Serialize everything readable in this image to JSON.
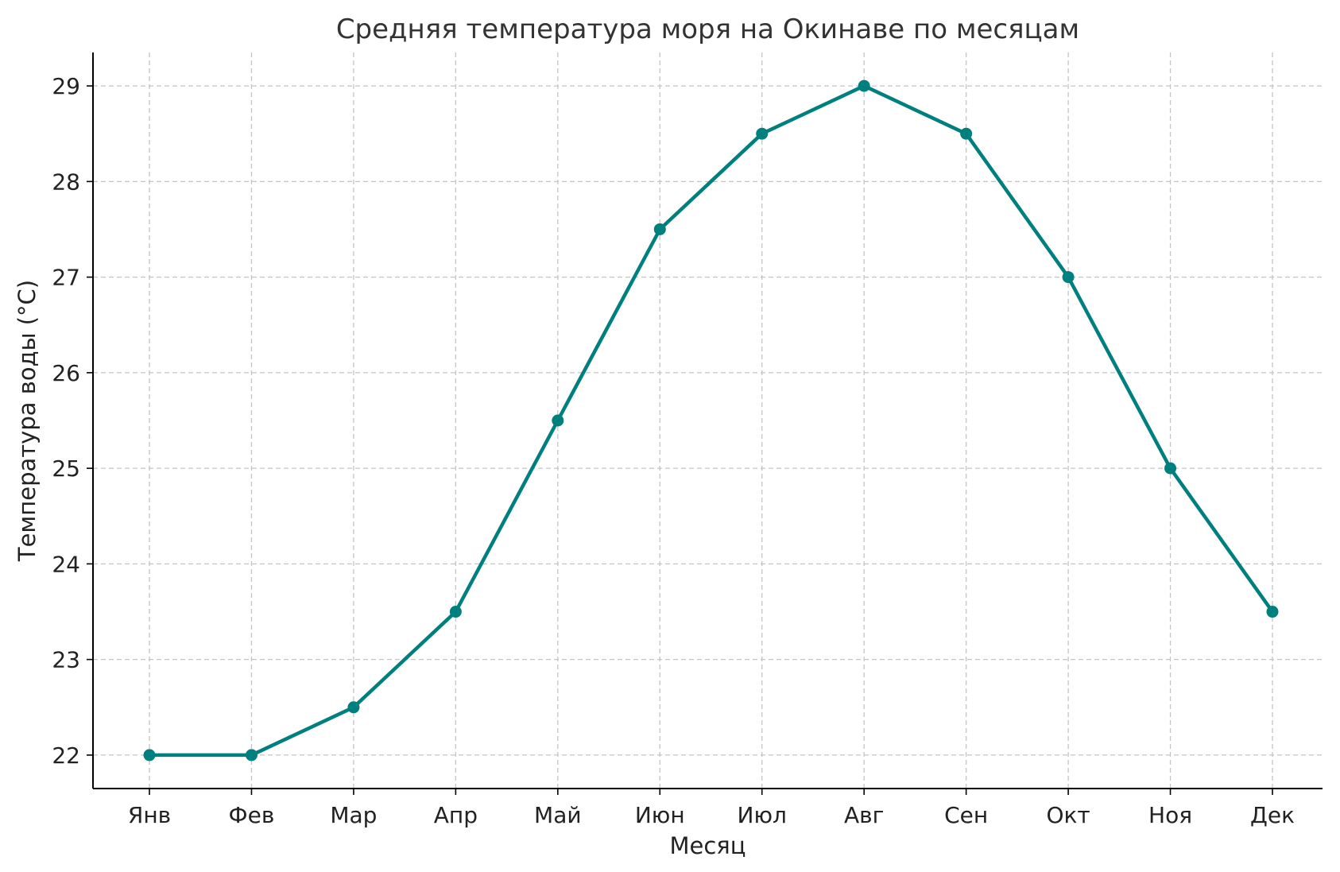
{
  "chart_data": {
    "type": "line",
    "title": "Средняя температура моря на Окинаве по месяцам",
    "xlabel": "Месяц",
    "ylabel": "Температура воды (°C)",
    "categories": [
      "Янв",
      "Фев",
      "Мар",
      "Апр",
      "Май",
      "Июн",
      "Июл",
      "Авг",
      "Сен",
      "Окт",
      "Ноя",
      "Дек"
    ],
    "series": [
      {
        "values": [
          22,
          22,
          22.5,
          23.5,
          25.5,
          27.5,
          28.5,
          29,
          28.5,
          27,
          25,
          23.5
        ],
        "color": "#007f7f",
        "marker": "circle"
      }
    ],
    "yticks": [
      22,
      23,
      24,
      25,
      26,
      27,
      28,
      29
    ],
    "ylim": [
      21.65,
      29.35
    ],
    "grid": true,
    "legend": false
  }
}
